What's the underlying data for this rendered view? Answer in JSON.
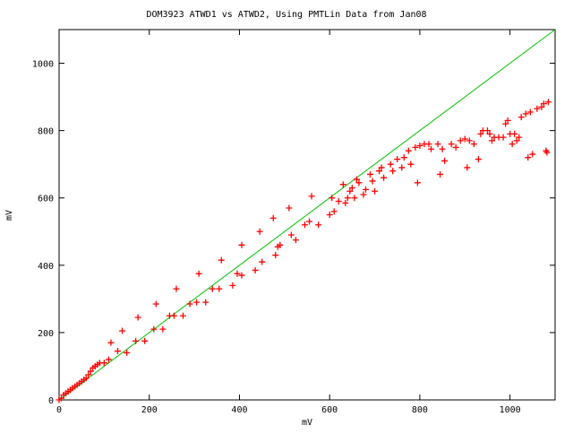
{
  "chart_data": {
    "type": "scatter",
    "title": "DOM3923 ATWD1 vs ATWD2, Using PMTLin Data from Jan08",
    "xlabel": "mV",
    "ylabel": "mV",
    "xlim": [
      0,
      1100
    ],
    "ylim": [
      0,
      1100
    ],
    "xticks": [
      "0",
      "200",
      "400",
      "600",
      "800",
      "1000"
    ],
    "yticks": [
      "0",
      "200",
      "400",
      "600",
      "800",
      "1000"
    ],
    "grid": false,
    "colors": {
      "points": "#ff0000",
      "line": "#00c000"
    },
    "reference_line": {
      "type": "y=x",
      "x": [
        0,
        1100
      ],
      "y": [
        0,
        1100
      ]
    },
    "points": [
      [
        0,
        0
      ],
      [
        5,
        5
      ],
      [
        10,
        15
      ],
      [
        15,
        20
      ],
      [
        20,
        25
      ],
      [
        25,
        30
      ],
      [
        30,
        35
      ],
      [
        35,
        40
      ],
      [
        40,
        45
      ],
      [
        45,
        50
      ],
      [
        50,
        55
      ],
      [
        55,
        60
      ],
      [
        60,
        65
      ],
      [
        65,
        75
      ],
      [
        70,
        85
      ],
      [
        75,
        95
      ],
      [
        80,
        100
      ],
      [
        85,
        105
      ],
      [
        90,
        110
      ],
      [
        100,
        110
      ],
      [
        110,
        120
      ],
      [
        115,
        170
      ],
      [
        130,
        145
      ],
      [
        140,
        205
      ],
      [
        150,
        140
      ],
      [
        170,
        175
      ],
      [
        175,
        245
      ],
      [
        190,
        175
      ],
      [
        210,
        210
      ],
      [
        215,
        285
      ],
      [
        230,
        210
      ],
      [
        245,
        250
      ],
      [
        255,
        250
      ],
      [
        260,
        330
      ],
      [
        275,
        250
      ],
      [
        290,
        285
      ],
      [
        305,
        290
      ],
      [
        310,
        375
      ],
      [
        325,
        290
      ],
      [
        340,
        330
      ],
      [
        355,
        330
      ],
      [
        360,
        415
      ],
      [
        385,
        340
      ],
      [
        395,
        375
      ],
      [
        405,
        370
      ],
      [
        405,
        460
      ],
      [
        435,
        385
      ],
      [
        445,
        500
      ],
      [
        450,
        410
      ],
      [
        475,
        540
      ],
      [
        480,
        430
      ],
      [
        485,
        455
      ],
      [
        490,
        460
      ],
      [
        510,
        570
      ],
      [
        515,
        490
      ],
      [
        525,
        475
      ],
      [
        545,
        520
      ],
      [
        555,
        530
      ],
      [
        560,
        605
      ],
      [
        575,
        520
      ],
      [
        600,
        550
      ],
      [
        605,
        600
      ],
      [
        610,
        560
      ],
      [
        620,
        590
      ],
      [
        630,
        640
      ],
      [
        635,
        585
      ],
      [
        640,
        600
      ],
      [
        645,
        620
      ],
      [
        650,
        630
      ],
      [
        655,
        600
      ],
      [
        660,
        655
      ],
      [
        665,
        645
      ],
      [
        675,
        610
      ],
      [
        680,
        625
      ],
      [
        690,
        670
      ],
      [
        695,
        650
      ],
      [
        700,
        620
      ],
      [
        710,
        680
      ],
      [
        715,
        690
      ],
      [
        720,
        660
      ],
      [
        735,
        700
      ],
      [
        740,
        680
      ],
      [
        750,
        715
      ],
      [
        760,
        690
      ],
      [
        765,
        720
      ],
      [
        775,
        740
      ],
      [
        780,
        700
      ],
      [
        790,
        750
      ],
      [
        795,
        645
      ],
      [
        800,
        755
      ],
      [
        810,
        760
      ],
      [
        820,
        760
      ],
      [
        825,
        745
      ],
      [
        840,
        760
      ],
      [
        845,
        670
      ],
      [
        850,
        745
      ],
      [
        855,
        710
      ],
      [
        870,
        760
      ],
      [
        880,
        750
      ],
      [
        890,
        770
      ],
      [
        900,
        775
      ],
      [
        905,
        690
      ],
      [
        910,
        770
      ],
      [
        920,
        760
      ],
      [
        930,
        715
      ],
      [
        935,
        790
      ],
      [
        940,
        800
      ],
      [
        950,
        800
      ],
      [
        955,
        790
      ],
      [
        960,
        770
      ],
      [
        965,
        780
      ],
      [
        975,
        780
      ],
      [
        985,
        780
      ],
      [
        990,
        820
      ],
      [
        995,
        830
      ],
      [
        1000,
        790
      ],
      [
        1005,
        760
      ],
      [
        1010,
        790
      ],
      [
        1015,
        770
      ],
      [
        1020,
        780
      ],
      [
        1025,
        840
      ],
      [
        1035,
        850
      ],
      [
        1040,
        720
      ],
      [
        1045,
        855
      ],
      [
        1050,
        730
      ],
      [
        1060,
        865
      ],
      [
        1070,
        870
      ],
      [
        1075,
        880
      ],
      [
        1080,
        740
      ],
      [
        1082,
        735
      ],
      [
        1085,
        885
      ]
    ]
  }
}
